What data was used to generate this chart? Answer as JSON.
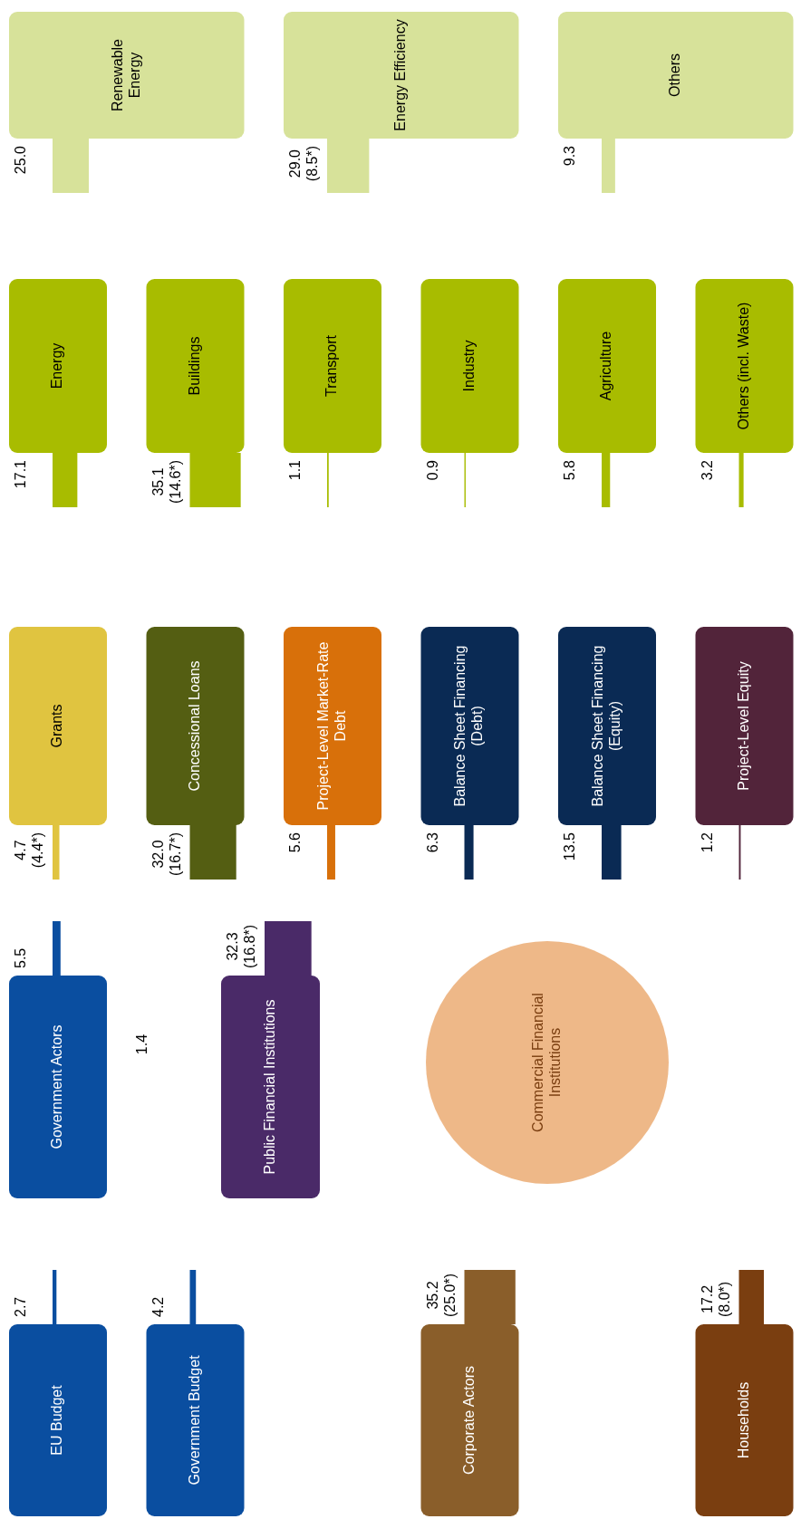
{
  "chart_data": [
    {
      "type": "other",
      "categories": [
        "Renewable Energy",
        "Energy Efficiency",
        "Others"
      ],
      "values": [
        25.0,
        29.0,
        9.3
      ],
      "value_labels": [
        "25.0",
        "29.0 (8.5*)",
        "9.3"
      ],
      "colors": [
        "#d7e29a",
        "#d7e29a",
        "#d7e29a"
      ]
    },
    {
      "type": "other",
      "categories": [
        "Energy",
        "Buildings",
        "Transport",
        "Industry",
        "Agriculture",
        "Others (incl. Waste)"
      ],
      "values": [
        17.1,
        35.1,
        1.1,
        0.9,
        5.8,
        3.2
      ],
      "value_labels": [
        "17.1",
        "35.1 (14.6*)",
        "1.1",
        "0.9",
        "5.8",
        "3.2"
      ],
      "colors": [
        "#a8bc00",
        "#a8bc00",
        "#a8bc00",
        "#a8bc00",
        "#a8bc00",
        "#a8bc00"
      ]
    },
    {
      "type": "other",
      "categories": [
        "Grants",
        "Concessional Loans",
        "Project-Level Market-Rate Debt",
        "Balance Sheet Financing (Debt)",
        "Balance Sheet Financing (Equity)",
        "Project-Level Equity"
      ],
      "values": [
        4.7,
        32.0,
        5.6,
        6.3,
        13.5,
        1.2
      ],
      "value_labels": [
        "4.7 (4.4*)",
        "32.0 (16.7*)",
        "5.6",
        "6.3",
        "13.5",
        "1.2"
      ],
      "colors": [
        "#e0c440",
        "#545e12",
        "#d8700a",
        "#0a2a54",
        "#0a2a54",
        "#52243a"
      ]
    },
    {
      "type": "other",
      "categories": [
        "Government Actors",
        "Public Financial Institutions"
      ],
      "values": [
        5.5,
        32.3
      ],
      "value_labels": [
        "5.5",
        "32.3 (16.8*)"
      ],
      "colors": [
        "#0a4ea0",
        "#4a2a68"
      ],
      "annotations": [
        "1.4",
        "Commercial Financial Institutions"
      ]
    },
    {
      "type": "other",
      "categories": [
        "EU Budget",
        "Government Budget",
        "Corporate Actors",
        "Households"
      ],
      "values": [
        2.7,
        4.2,
        35.2,
        17.2
      ],
      "value_labels": [
        "2.7",
        "4.2",
        "35.2 (25.0*)",
        "17.2 (8.0*)"
      ],
      "colors": [
        "#0a4ea0",
        "#0a4ea0",
        "#8a5e2a",
        "#7a3e10"
      ]
    }
  ]
}
